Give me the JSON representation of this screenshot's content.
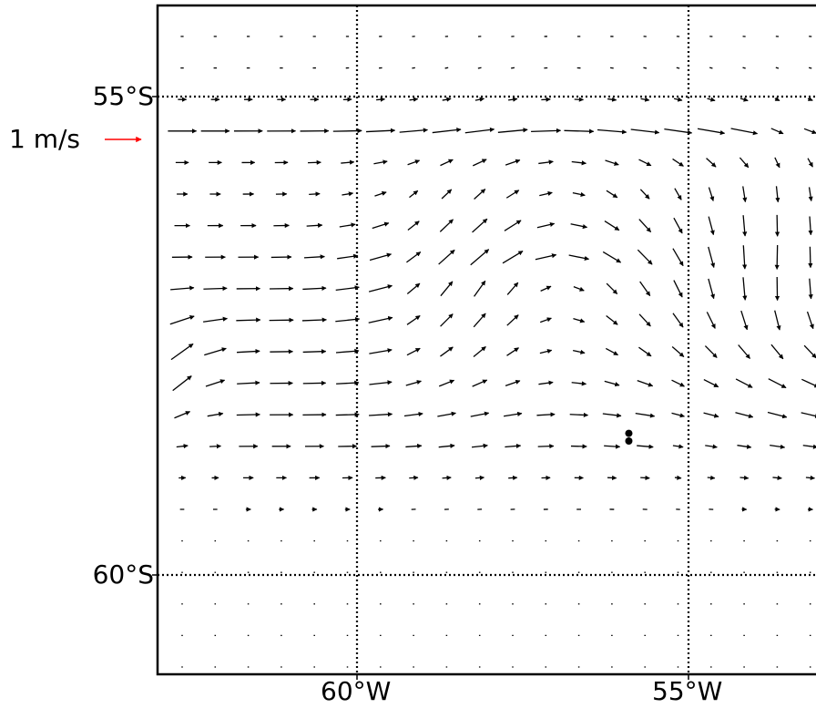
{
  "map": {
    "type": "ocean surface current vector field",
    "lat_range_deg": [
      -60.5,
      -54.35
    ],
    "lon_range_deg": [
      -63,
      -52.1
    ],
    "graticule": {
      "style": "dotted",
      "color": "#000000"
    },
    "arrow_color": "#000000",
    "reference_color": "#ff0000",
    "lat_labels": [
      {
        "id": "lat-55",
        "lat": -55,
        "text": "55°S"
      },
      {
        "id": "lat-60",
        "lat": -60,
        "text": "60°S"
      }
    ],
    "lon_labels": [
      {
        "id": "lon-60",
        "lon": -60,
        "text": "60°W"
      },
      {
        "id": "lon-55",
        "lon": -55,
        "text": "55°W"
      }
    ],
    "reference_vector": {
      "speed_mps": 1,
      "label": "1 m/s"
    },
    "markers": [
      {
        "name": "island-marker-1",
        "lat": -58.52,
        "lon": -55.9
      },
      {
        "name": "island-marker-2",
        "lat": -58.6,
        "lon": -55.9
      }
    ]
  }
}
